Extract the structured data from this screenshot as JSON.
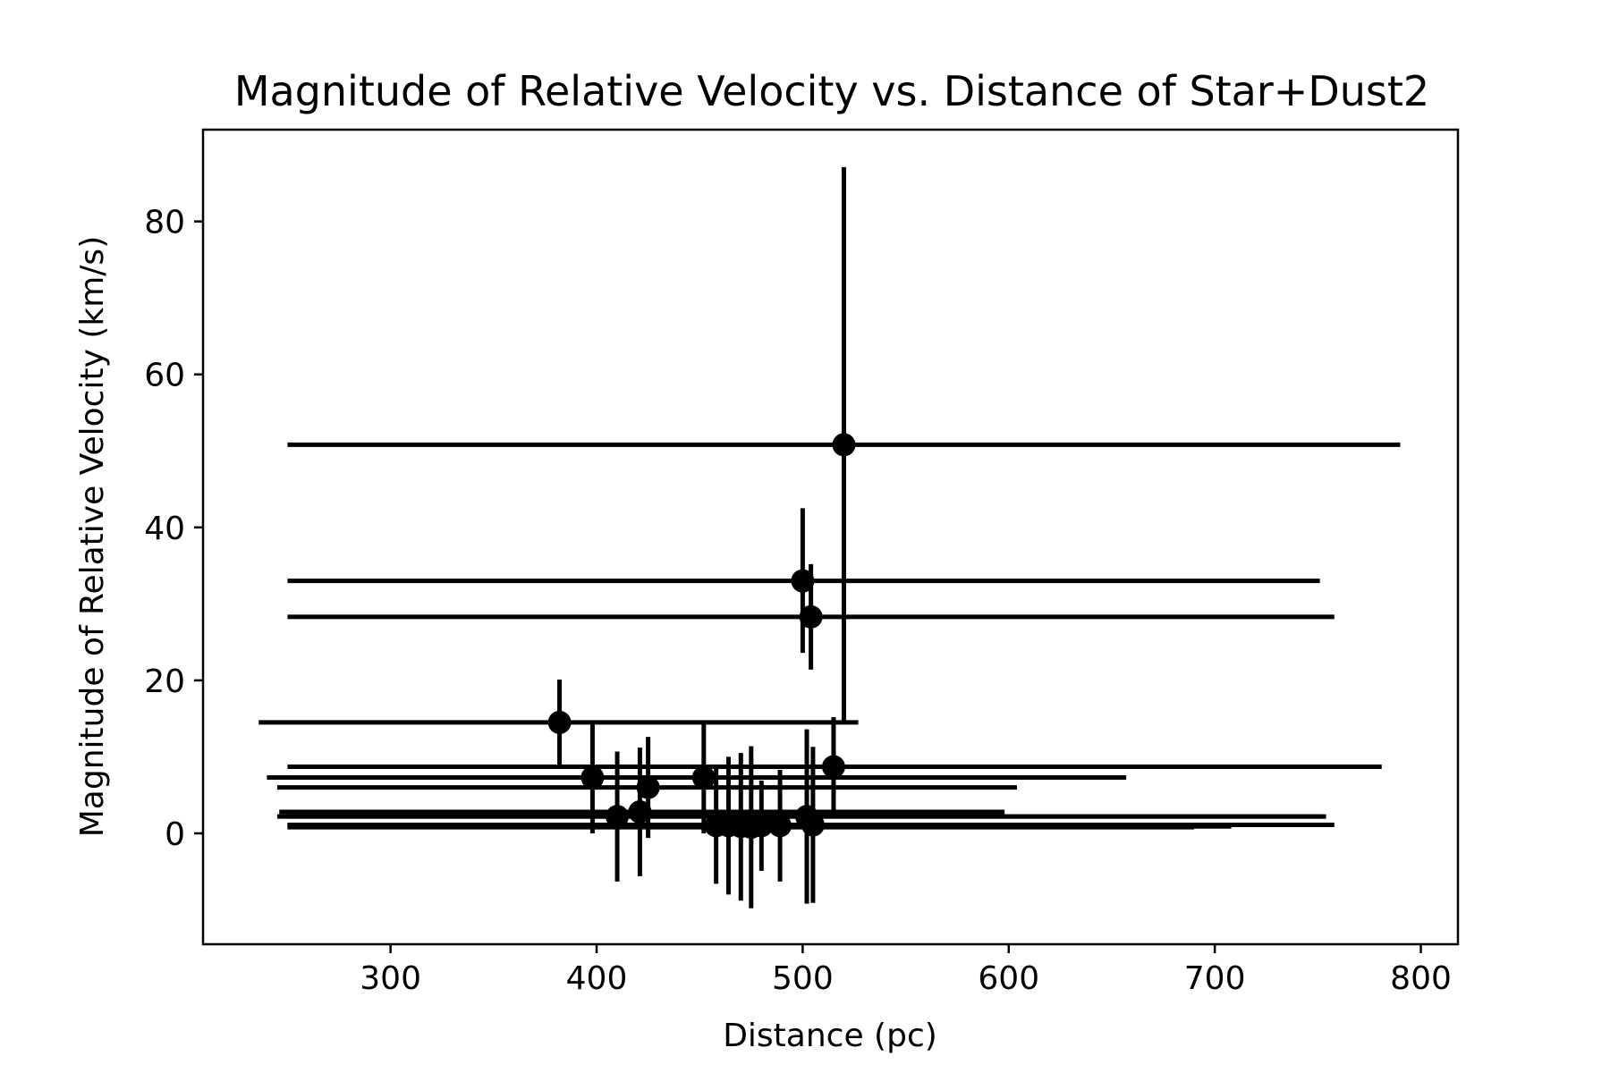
{
  "chart_data": {
    "type": "scatter",
    "title": "Magnitude of Relative Velocity vs. Distance of Star+Dust2",
    "xlabel": "Distance (pc)",
    "ylabel": "Magnitude of Relative Velocity (km/s)",
    "xlim": [
      209,
      818
    ],
    "ylim": [
      -14.5,
      92
    ],
    "xticks": [
      300,
      400,
      500,
      600,
      700,
      800
    ],
    "yticks": [
      0,
      20,
      40,
      60,
      80
    ],
    "grid": false,
    "legend": "none",
    "color": "#000000",
    "points": [
      {
        "x": 520,
        "y": 50.8,
        "xerr_low": 270,
        "xerr_high": 270,
        "yerr_low": 36.5,
        "yerr_high": 36.3
      },
      {
        "x": 500,
        "y": 33.0,
        "xerr_low": 250,
        "xerr_high": 251,
        "yerr_low": 9.4,
        "yerr_high": 9.5
      },
      {
        "x": 504,
        "y": 28.3,
        "xerr_low": 254,
        "xerr_high": 254,
        "yerr_low": 6.9,
        "yerr_high": 6.9
      },
      {
        "x": 382,
        "y": 14.5,
        "xerr_low": 146,
        "xerr_high": 145,
        "yerr_low": 5.7,
        "yerr_high": 5.6
      },
      {
        "x": 515,
        "y": 8.7,
        "xerr_low": 265,
        "xerr_high": 266,
        "yerr_low": 6.5,
        "yerr_high": 6.5
      },
      {
        "x": 398,
        "y": 7.3,
        "xerr_low": 158,
        "xerr_high": 259,
        "yerr_low": 7.3,
        "yerr_high": 7.3
      },
      {
        "x": 452,
        "y": 7.3,
        "xerr_low": 202,
        "xerr_high": 152,
        "yerr_low": 7.3,
        "yerr_high": 7.3
      },
      {
        "x": 425,
        "y": 6.0,
        "xerr_low": 180,
        "xerr_high": 179,
        "yerr_low": 6.6,
        "yerr_high": 6.6
      },
      {
        "x": 421,
        "y": 2.8,
        "xerr_low": 175,
        "xerr_high": 177,
        "yerr_low": 8.4,
        "yerr_high": 8.4
      },
      {
        "x": 410,
        "y": 2.2,
        "xerr_low": 165,
        "xerr_high": 342,
        "yerr_low": 8.5,
        "yerr_high": 8.5
      },
      {
        "x": 502,
        "y": 2.2,
        "xerr_low": 252,
        "xerr_high": 252,
        "yerr_low": 11.4,
        "yerr_high": 11.4
      },
      {
        "x": 505,
        "y": 1.1,
        "xerr_low": 255,
        "xerr_high": 253,
        "yerr_low": 10.2,
        "yerr_high": 10.2
      },
      {
        "x": 458,
        "y": 1.0,
        "xerr_low": 208,
        "xerr_high": 250,
        "yerr_low": 7.6,
        "yerr_high": 7.6
      },
      {
        "x": 470,
        "y": 0.9,
        "xerr_low": 220,
        "xerr_high": 238,
        "yerr_low": 9.7,
        "yerr_high": 9.6
      },
      {
        "x": 480,
        "y": 1.0,
        "xerr_low": 230,
        "xerr_high": 210,
        "yerr_low": 5.9,
        "yerr_high": 5.9
      },
      {
        "x": 489,
        "y": 1.0,
        "xerr_low": 239,
        "xerr_high": 201,
        "yerr_low": 7.3,
        "yerr_high": 7.3
      },
      {
        "x": 464,
        "y": 1.0,
        "xerr_low": 214,
        "xerr_high": 226,
        "yerr_low": 9.0,
        "yerr_high": 9.0
      },
      {
        "x": 475,
        "y": 0.8,
        "xerr_low": 225,
        "xerr_high": 215,
        "yerr_low": 10.6,
        "yerr_high": 10.6
      }
    ]
  }
}
